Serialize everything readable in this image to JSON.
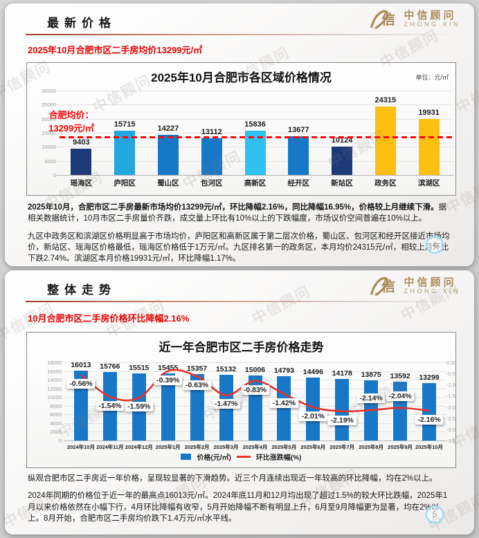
{
  "watermark": "中信顾问",
  "logo": {
    "cn": "中信顾问",
    "en": "ZHONG XIN",
    "mark": "信"
  },
  "slide1": {
    "heading": "最新价格",
    "subtitle": "2025年10月合肥市区二手房均价13299元/㎡",
    "para1_bold": "2025年10月，合肥市区二手房最新市场均价13299元/㎡，环比降幅2.16%，同比降幅16.95%，价格较上月继续下滑。",
    "para1_rest": "据相关数据统计，10月市区二手房量价齐跌，成交量上环比有10%以上的下跌幅度，市场议价空间普遍在10%以上。",
    "para2": "九区中政务区和滨湖区价格明显高于市场均价，庐阳区和高新区属于第二层次价格，蜀山区、包河区和经开区接近市场均价，新站区、瑶海区价格最低，瑶海区价格低于1万元/㎡。九区排名第一的政务区，本月均价24315元/㎡，相较上月环比下跌2.74%。滨湖区本月价格19931元/㎡，环比降幅1.17%。",
    "page": "4"
  },
  "slide2": {
    "heading": "整体走势",
    "subtitle": "10月合肥市区二手房价格环比降幅2.16%",
    "para1": "纵观合肥市区二手房近一年价格，呈现较显著的下滑趋势。近三个月连续出现近一年较高的环比降幅，均在2%以上。",
    "para2": "2024年同期的价格位于近一年的最高点16013元/㎡。2024年底11月和12月均出现了超过1.5%的较大环比跌幅，2025年1月以来价格依然在小幅下行，4月环比降幅有收窄，5月开始降幅不断有明显上升，6月至9月降幅更为显著，均在2%以上。8月开始，合肥市区二手房均价跌下1.4万元/㎡水平线。",
    "page": "5"
  },
  "chart_data": [
    {
      "type": "bar",
      "title": "2025年10月合肥市各区域价格情况",
      "unit_label": "单位：元/㎡",
      "categories": [
        "瑶海区",
        "庐阳区",
        "蜀山区",
        "包河区",
        "高新区",
        "经开区",
        "新站区",
        "政务区",
        "滨湖区"
      ],
      "values": [
        9403,
        15715,
        14227,
        13112,
        15836,
        13677,
        10124,
        24315,
        19931
      ],
      "bar_colors": [
        "#1d3a78",
        "#22a7e0",
        "#1878c8",
        "#1878c8",
        "#2fc1ef",
        "#1878c8",
        "#1d3a78",
        "#fcc011",
        "#fcc011"
      ],
      "ylim": [
        0,
        30000
      ],
      "ytick_step": 5000,
      "grid": true,
      "average_line": {
        "value": 13299,
        "color": "#ff0000",
        "label1": "合肥均价：",
        "label2": "13299元/㎡"
      }
    },
    {
      "type": "bar+line",
      "title": "近一年合肥市区二手房价格走势",
      "categories": [
        "2024年10月",
        "2024年11月",
        "2024年12月",
        "2025年1月",
        "2025年2月",
        "2025年3月",
        "2025年4月",
        "2025年5月",
        "2025年6月",
        "2025年7月",
        "2025年8月",
        "2025年9月",
        "2025年10月"
      ],
      "series": [
        {
          "name": "价格(元/㎡)",
          "type": "bar",
          "color": "#1878c8",
          "values": [
            16013,
            15766,
            15515,
            15455,
            15357,
            15132,
            15006,
            14793,
            14496,
            14178,
            13875,
            13592,
            13299
          ]
        },
        {
          "name": "环比涨跌幅(%)",
          "type": "line",
          "color": "#e8312a",
          "values": [
            -0.56,
            -1.54,
            -1.59,
            -0.39,
            -0.63,
            -1.47,
            -0.83,
            -1.42,
            -2.01,
            -2.19,
            -2.14,
            -2.04,
            -2.16
          ],
          "labels": [
            "-0.56%",
            "-1.54%",
            "-1.59%",
            "-0.39%",
            "-0.63%",
            "-1.47%",
            "-0.83%",
            "-1.42%",
            "-2.01%",
            "-2.19%",
            "-2.14%",
            "-2.04%",
            "-2.16%"
          ],
          "label_pos": [
            "b",
            "b",
            "b",
            "b",
            "b",
            "b",
            "b",
            "b",
            "b",
            "b",
            "a",
            "a",
            "b"
          ]
        }
      ],
      "ylim_left": [
        0,
        18000
      ],
      "ytick_step_left": 2000,
      "ylim_right": [
        -3.5,
        0
      ],
      "ytick_step_right": 0.5,
      "grid": true,
      "legend_position": "bottom"
    }
  ]
}
